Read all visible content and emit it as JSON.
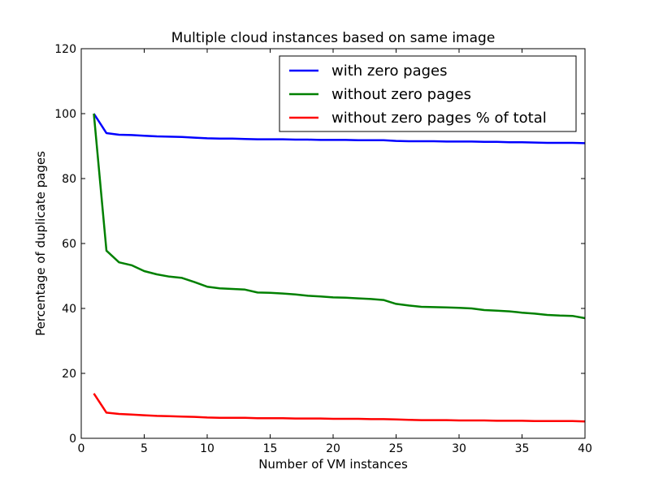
{
  "chart_data": {
    "type": "line",
    "title": "Multiple cloud instances based on same image",
    "xlabel": "Number of VM instances",
    "ylabel": "Percentage of duplicate pages",
    "xlim": [
      0,
      40
    ],
    "ylim": [
      0,
      120
    ],
    "xticks": [
      0,
      5,
      10,
      15,
      20,
      25,
      30,
      35,
      40
    ],
    "yticks": [
      0,
      20,
      40,
      60,
      80,
      100,
      120
    ],
    "grid": false,
    "legend_position": "top-right",
    "x": [
      1,
      2,
      3,
      4,
      5,
      6,
      7,
      8,
      9,
      10,
      11,
      12,
      13,
      14,
      15,
      16,
      17,
      18,
      19,
      20,
      21,
      22,
      23,
      24,
      25,
      26,
      27,
      28,
      29,
      30,
      31,
      32,
      33,
      34,
      35,
      36,
      37,
      38,
      39,
      40
    ],
    "series": [
      {
        "name": "with zero pages",
        "color": "#0000ff",
        "values": [
          100,
          94,
          93.5,
          93.4,
          93.2,
          93.0,
          92.9,
          92.8,
          92.6,
          92.4,
          92.3,
          92.3,
          92.2,
          92.1,
          92.1,
          92.1,
          92.0,
          92.0,
          91.9,
          91.9,
          91.9,
          91.8,
          91.8,
          91.8,
          91.6,
          91.5,
          91.5,
          91.5,
          91.4,
          91.4,
          91.4,
          91.3,
          91.3,
          91.2,
          91.2,
          91.1,
          91.0,
          91.0,
          91.0,
          90.9
        ]
      },
      {
        "name": "without zero pages",
        "color": "#008000",
        "values": [
          100,
          57.8,
          54.2,
          53.3,
          51.5,
          50.5,
          49.8,
          49.4,
          48.1,
          46.7,
          46.2,
          46.0,
          45.8,
          44.9,
          44.8,
          44.6,
          44.3,
          43.9,
          43.7,
          43.4,
          43.3,
          43.1,
          42.9,
          42.6,
          41.4,
          40.9,
          40.5,
          40.4,
          40.3,
          40.2,
          40.0,
          39.5,
          39.3,
          39.1,
          38.7,
          38.4,
          38.0,
          37.8,
          37.7,
          37.0
        ]
      },
      {
        "name": "without zero pages % of total",
        "color": "#ff0000",
        "values": [
          13.8,
          7.9,
          7.5,
          7.3,
          7.1,
          6.9,
          6.8,
          6.7,
          6.6,
          6.4,
          6.3,
          6.3,
          6.3,
          6.2,
          6.2,
          6.2,
          6.1,
          6.1,
          6.1,
          6.0,
          6.0,
          6.0,
          5.9,
          5.9,
          5.8,
          5.7,
          5.6,
          5.6,
          5.6,
          5.5,
          5.5,
          5.5,
          5.4,
          5.4,
          5.4,
          5.3,
          5.3,
          5.3,
          5.3,
          5.2
        ]
      }
    ]
  }
}
